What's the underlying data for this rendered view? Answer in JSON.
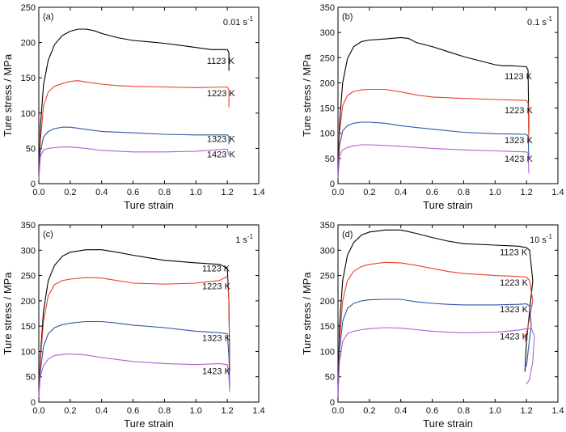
{
  "chart_data": [
    {
      "type": "line",
      "panel_label": "(a)",
      "rate": "0.01 s",
      "rate_exp": "-1",
      "xlabel": "Ture strain",
      "ylabel": "Ture stress / MPa",
      "xlim": [
        0,
        1.4
      ],
      "ylim": [
        0,
        250
      ],
      "xticks": [
        "0.0",
        "0.2",
        "0.4",
        "0.6",
        "0.8",
        "1.0",
        "1.2",
        "1.4"
      ],
      "yticks": [
        "0",
        "50",
        "100",
        "150",
        "200",
        "250"
      ],
      "grid": false,
      "series": [
        {
          "name": "1123 K",
          "color": "#000000",
          "label_at": [
            1.07,
            170
          ],
          "x": [
            0,
            0.01,
            0.03,
            0.06,
            0.1,
            0.15,
            0.2,
            0.25,
            0.3,
            0.35,
            0.4,
            0.5,
            0.6,
            0.7,
            0.8,
            0.9,
            1.0,
            1.1,
            1.15,
            1.2,
            1.21,
            1.21
          ],
          "y": [
            5,
            80,
            140,
            175,
            197,
            210,
            216,
            219,
            219,
            217,
            213,
            207,
            203,
            201,
            199,
            196,
            193,
            190,
            190,
            190,
            186,
            160
          ]
        },
        {
          "name": "1223 K",
          "color": "#e8412a",
          "label_at": [
            1.07,
            124
          ],
          "x": [
            0,
            0.01,
            0.03,
            0.06,
            0.1,
            0.15,
            0.2,
            0.25,
            0.3,
            0.4,
            0.5,
            0.6,
            0.8,
            1.0,
            1.2,
            1.21,
            1.21
          ],
          "y": [
            5,
            60,
            110,
            130,
            138,
            142,
            145,
            146,
            144,
            141,
            139,
            138,
            137,
            136,
            137,
            133,
            108
          ]
        },
        {
          "name": "1323 K",
          "color": "#2f54a8",
          "label_at": [
            1.07,
            59
          ],
          "x": [
            0,
            0.01,
            0.03,
            0.06,
            0.1,
            0.15,
            0.2,
            0.3,
            0.4,
            0.6,
            0.8,
            1.0,
            1.2,
            1.21,
            1.21
          ],
          "y": [
            5,
            45,
            66,
            74,
            78,
            80,
            80,
            77,
            74,
            72,
            70,
            69,
            69,
            67,
            56
          ]
        },
        {
          "name": "1423 K",
          "color": "#b05ed3",
          "label_at": [
            1.07,
            37
          ],
          "x": [
            0,
            0.01,
            0.03,
            0.06,
            0.1,
            0.15,
            0.2,
            0.3,
            0.4,
            0.6,
            0.8,
            1.0,
            1.2,
            1.21
          ],
          "y": [
            5,
            38,
            48,
            50,
            51,
            52,
            52,
            50,
            47,
            45,
            45,
            46,
            49,
            40
          ]
        }
      ]
    },
    {
      "type": "line",
      "panel_label": "(b)",
      "rate": "0.1 s",
      "rate_exp": "-1",
      "xlabel": "Ture strain",
      "ylabel": "Ture stress / MPa",
      "xlim": [
        0,
        1.4
      ],
      "ylim": [
        0,
        350
      ],
      "xticks": [
        "0.0",
        "0.2",
        "0.4",
        "0.6",
        "0.8",
        "1.0",
        "1.2",
        "1.4"
      ],
      "yticks": [
        "0",
        "50",
        "100",
        "150",
        "200",
        "250",
        "300",
        "350"
      ],
      "grid": false,
      "series": [
        {
          "name": "1123 K",
          "color": "#000000",
          "label_at": [
            1.06,
            207
          ],
          "x": [
            0,
            0.01,
            0.03,
            0.06,
            0.1,
            0.15,
            0.2,
            0.3,
            0.4,
            0.45,
            0.5,
            0.6,
            0.7,
            0.8,
            0.9,
            1.0,
            1.05,
            1.1,
            1.2,
            1.21,
            1.215
          ],
          "y": [
            10,
            120,
            200,
            248,
            272,
            282,
            285,
            287,
            290,
            288,
            280,
            272,
            262,
            252,
            244,
            236,
            234,
            234,
            232,
            225,
            100
          ]
        },
        {
          "name": "1223 K",
          "color": "#e8412a",
          "label_at": [
            1.06,
            140
          ],
          "x": [
            0,
            0.01,
            0.03,
            0.06,
            0.1,
            0.15,
            0.2,
            0.3,
            0.4,
            0.5,
            0.6,
            0.8,
            1.0,
            1.2,
            1.21,
            1.215
          ],
          "y": [
            10,
            100,
            155,
            175,
            183,
            186,
            187,
            187,
            182,
            176,
            172,
            169,
            167,
            165,
            160,
            80
          ]
        },
        {
          "name": "1323 K",
          "color": "#2f54a8",
          "label_at": [
            1.06,
            80
          ],
          "x": [
            0,
            0.01,
            0.03,
            0.06,
            0.1,
            0.15,
            0.2,
            0.3,
            0.4,
            0.6,
            0.8,
            1.0,
            1.2,
            1.21,
            1.215
          ],
          "y": [
            10,
            75,
            105,
            115,
            120,
            122,
            122,
            120,
            115,
            108,
            102,
            99,
            98,
            94,
            50
          ]
        },
        {
          "name": "1423 K",
          "color": "#b05ed3",
          "label_at": [
            1.06,
            43
          ],
          "x": [
            0,
            0.01,
            0.03,
            0.06,
            0.1,
            0.15,
            0.2,
            0.3,
            0.4,
            0.6,
            0.8,
            1.0,
            1.2,
            1.21,
            1.215
          ],
          "y": [
            10,
            55,
            67,
            72,
            75,
            77,
            77,
            76,
            74,
            70,
            67,
            65,
            63,
            60,
            20
          ]
        }
      ]
    },
    {
      "type": "line",
      "panel_label": "(c)",
      "rate": "1 s",
      "rate_exp": "-1",
      "xlabel": "Ture strain",
      "ylabel": "Ture stress / MPa",
      "xlim": [
        0,
        1.4
      ],
      "ylim": [
        0,
        350
      ],
      "xticks": [
        "0.0",
        "0.2",
        "0.4",
        "0.6",
        "0.8",
        "1.0",
        "1.2",
        "1.4"
      ],
      "yticks": [
        "0",
        "50",
        "100",
        "150",
        "200",
        "250",
        "300",
        "350"
      ],
      "grid": false,
      "series": [
        {
          "name": "1123 K",
          "color": "#000000",
          "label_at": [
            1.04,
            258
          ],
          "x": [
            0,
            0.01,
            0.03,
            0.06,
            0.1,
            0.15,
            0.2,
            0.3,
            0.4,
            0.5,
            0.6,
            0.7,
            0.8,
            1.0,
            1.15,
            1.2,
            1.21,
            1.215
          ],
          "y": [
            10,
            90,
            180,
            240,
            270,
            288,
            296,
            301,
            301,
            296,
            290,
            285,
            280,
            275,
            272,
            265,
            200,
            60
          ]
        },
        {
          "name": "1223 K",
          "color": "#e8412a",
          "label_at": [
            1.04,
            223
          ],
          "x": [
            0,
            0.01,
            0.03,
            0.06,
            0.1,
            0.15,
            0.2,
            0.3,
            0.4,
            0.5,
            0.6,
            0.8,
            1.0,
            1.15,
            1.2,
            1.21,
            1.215
          ],
          "y": [
            10,
            80,
            160,
            210,
            232,
            240,
            243,
            246,
            245,
            240,
            235,
            233,
            235,
            240,
            248,
            200,
            60
          ]
        },
        {
          "name": "1323 K",
          "color": "#2f54a8",
          "label_at": [
            1.04,
            121
          ],
          "x": [
            0,
            0.01,
            0.03,
            0.06,
            0.1,
            0.15,
            0.2,
            0.3,
            0.4,
            0.5,
            0.6,
            0.8,
            1.0,
            1.15,
            1.2,
            1.21,
            1.215
          ],
          "y": [
            10,
            60,
            110,
            135,
            147,
            153,
            156,
            159,
            159,
            156,
            152,
            147,
            140,
            137,
            135,
            90,
            30
          ]
        },
        {
          "name": "1423 K",
          "color": "#b05ed3",
          "label_at": [
            1.04,
            55
          ],
          "x": [
            0,
            0.01,
            0.03,
            0.06,
            0.1,
            0.15,
            0.2,
            0.3,
            0.4,
            0.6,
            0.8,
            1.0,
            1.15,
            1.2,
            1.21,
            1.215
          ],
          "y": [
            10,
            50,
            72,
            85,
            92,
            94,
            95,
            93,
            88,
            80,
            76,
            74,
            76,
            74,
            50,
            20
          ]
        }
      ]
    },
    {
      "type": "line",
      "panel_label": "(d)",
      "rate": "10 s",
      "rate_exp": "-1",
      "xlabel": "Ture strain",
      "ylabel": "Ture stress / MPa",
      "xlim": [
        0,
        1.4
      ],
      "ylim": [
        0,
        350
      ],
      "xticks": [
        "0.0",
        "0.2",
        "0.4",
        "0.6",
        "0.8",
        "1.0",
        "1.2",
        "1.4"
      ],
      "yticks": [
        "0",
        "50",
        "100",
        "150",
        "200",
        "250",
        "300",
        "350"
      ],
      "grid": false,
      "series": [
        {
          "name": "1123 K",
          "color": "#000000",
          "label_at": [
            1.03,
            290
          ],
          "x": [
            0,
            0.01,
            0.03,
            0.06,
            0.1,
            0.15,
            0.2,
            0.3,
            0.4,
            0.5,
            0.6,
            0.7,
            0.8,
            1.0,
            1.15,
            1.2,
            1.22,
            1.24,
            1.2,
            1.19
          ],
          "y": [
            10,
            150,
            240,
            290,
            315,
            330,
            336,
            340,
            340,
            333,
            325,
            318,
            313,
            310,
            308,
            305,
            300,
            240,
            120,
            60
          ]
        },
        {
          "name": "1223 K",
          "color": "#e8412a",
          "label_at": [
            1.03,
            230
          ],
          "x": [
            0,
            0.01,
            0.03,
            0.06,
            0.1,
            0.15,
            0.2,
            0.3,
            0.4,
            0.5,
            0.6,
            0.7,
            0.8,
            1.0,
            1.15,
            1.2,
            1.22,
            1.24,
            1.21,
            1.19
          ],
          "y": [
            10,
            120,
            200,
            240,
            258,
            268,
            272,
            276,
            275,
            270,
            264,
            258,
            254,
            250,
            248,
            247,
            240,
            200,
            150,
            120
          ]
        },
        {
          "name": "1323 K",
          "color": "#2f54a8",
          "label_at": [
            1.03,
            177
          ],
          "x": [
            0,
            0.01,
            0.03,
            0.06,
            0.1,
            0.15,
            0.2,
            0.3,
            0.4,
            0.5,
            0.6,
            0.7,
            0.8,
            1.0,
            1.15,
            1.2,
            1.22,
            1.23,
            1.21,
            1.2
          ],
          "y": [
            10,
            100,
            160,
            185,
            195,
            200,
            202,
            203,
            203,
            198,
            195,
            193,
            192,
            192,
            193,
            194,
            190,
            150,
            100,
            70
          ]
        },
        {
          "name": "1423 K",
          "color": "#b05ed3",
          "label_at": [
            1.03,
            124
          ],
          "x": [
            0,
            0.01,
            0.03,
            0.06,
            0.1,
            0.15,
            0.2,
            0.3,
            0.4,
            0.5,
            0.6,
            0.7,
            0.8,
            1.0,
            1.15,
            1.2,
            1.23,
            1.25,
            1.24,
            1.22,
            1.2
          ],
          "y": [
            10,
            80,
            120,
            135,
            140,
            143,
            145,
            147,
            146,
            143,
            140,
            138,
            137,
            138,
            142,
            145,
            146,
            130,
            80,
            45,
            35
          ]
        }
      ]
    }
  ]
}
